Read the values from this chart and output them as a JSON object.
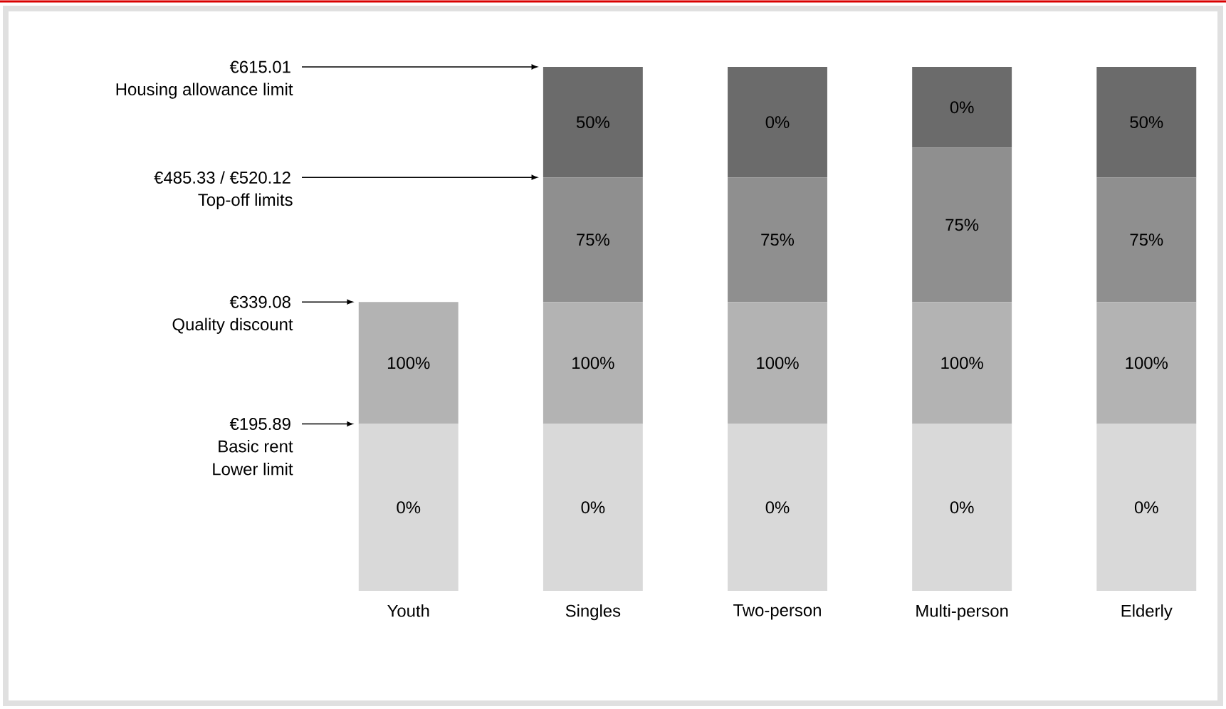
{
  "chart_data": {
    "type": "bar",
    "stacked": true,
    "categories": [
      "Youth",
      "Singles",
      "Two-person",
      "Multi-person",
      "Elderly"
    ],
    "series": [
      {
        "color": "#d9d9d9",
        "values": [
          195.89,
          195.89,
          195.89,
          195.89,
          195.89
        ]
      },
      {
        "color": "#b3b3b3",
        "values": [
          143.19,
          143.19,
          143.19,
          143.19,
          143.19
        ]
      },
      {
        "color": "#8f8f8f",
        "values": [
          null,
          146.25,
          146.25,
          181.04,
          146.25
        ]
      },
      {
        "color": "#6b6b6b",
        "values": [
          null,
          129.68,
          129.68,
          94.89,
          129.68
        ]
      }
    ],
    "ylim": [
      0,
      615.01
    ],
    "yticks": [
      {
        "value": 195.89,
        "label": "€195.89"
      },
      {
        "value": 339.08,
        "label": "€339.08"
      },
      {
        "value": 485.33,
        "label": "€485.33 / €520.12"
      },
      {
        "value": 615.01,
        "label": "€615.01"
      }
    ],
    "annotations": [
      "Basic rent",
      "Lower limit",
      "Quality discount",
      "Top-off limits",
      "Housing allowance limit",
      "0%",
      "100%",
      "0%",
      "100%",
      "75%",
      "50%",
      "0%",
      "100%",
      "75%",
      "0%",
      "0%",
      "100%",
      "75%",
      "0%",
      "0%",
      "100%",
      "75%",
      "50%"
    ]
  }
}
